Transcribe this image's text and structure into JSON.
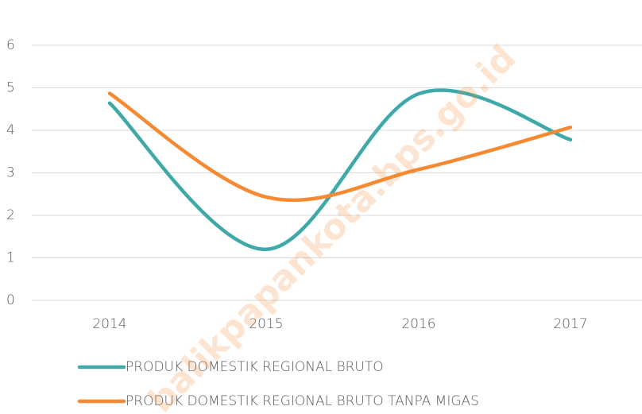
{
  "chart_data": {
    "type": "line",
    "categories": [
      "2014",
      "2015",
      "2016",
      "2017"
    ],
    "series": [
      {
        "name": "PRODUK DOMESTIK REGIONAL BRUTO",
        "color": "#3fa9a9",
        "values": [
          4.64,
          1.2,
          4.86,
          3.78
        ]
      },
      {
        "name": "PRODUK DOMESTIK REGIONAL BRUTO TANPA MIGAS",
        "color": "#f58a32",
        "values": [
          4.87,
          2.43,
          3.08,
          4.07
        ]
      }
    ],
    "ylim": [
      0,
      6
    ],
    "yticks": [
      0,
      1,
      2,
      3,
      4,
      5,
      6
    ],
    "grid": true,
    "smooth": true,
    "legend": "bottom",
    "watermark": "balikpapankota.bps.go.id"
  }
}
